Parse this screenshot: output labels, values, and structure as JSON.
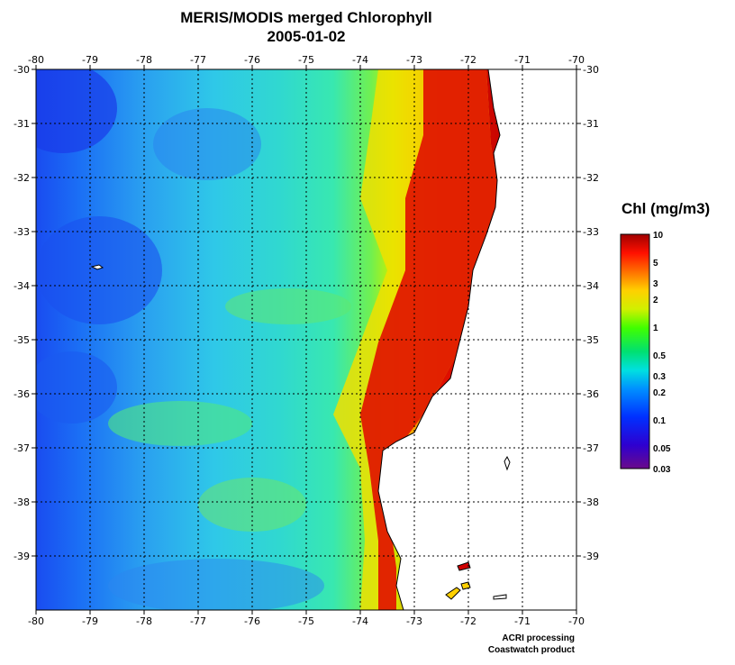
{
  "title": "MERIS/MODIS merged Chlorophyll",
  "date": "2005-01-02",
  "map": {
    "lon_range": [
      -80,
      -70
    ],
    "lat_range": [
      -30,
      -40
    ],
    "lon_ticks": [
      -80,
      -79,
      -78,
      -77,
      -76,
      -75,
      -74,
      -73,
      -72,
      -71,
      -70
    ],
    "lat_ticks": [
      -30,
      -31,
      -32,
      -33,
      -34,
      -35,
      -36,
      -37,
      -38,
      -39
    ],
    "grid": "dotted",
    "land_color": "#ffffff"
  },
  "colorbar": {
    "title": "Chl (mg/m3)",
    "scale": "log",
    "range": [
      0.03,
      10
    ],
    "ticks": [
      {
        "value": 10,
        "label": "10"
      },
      {
        "value": 5,
        "label": "5"
      },
      {
        "value": 3,
        "label": "3"
      },
      {
        "value": 2,
        "label": "2"
      },
      {
        "value": 1,
        "label": "1"
      },
      {
        "value": 0.5,
        "label": "0.5"
      },
      {
        "value": 0.3,
        "label": "0.3"
      },
      {
        "value": 0.2,
        "label": "0.2"
      },
      {
        "value": 0.1,
        "label": "0.1"
      },
      {
        "value": 0.05,
        "label": "0.05"
      },
      {
        "value": 0.03,
        "label": "0.03"
      }
    ],
    "colors": [
      "#6a0a8a",
      "#2e00d0",
      "#0030ff",
      "#0090ff",
      "#00e0e0",
      "#00e070",
      "#40ff00",
      "#d0f000",
      "#ffd000",
      "#ff7000",
      "#ff1000",
      "#a00000"
    ]
  },
  "credits": {
    "line1": "ACRI processing",
    "line2": "Coastwatch product"
  }
}
